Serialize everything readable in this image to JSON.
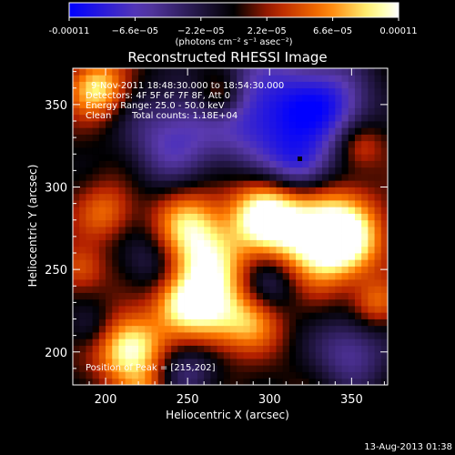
{
  "chart_data": {
    "type": "heatmap",
    "title": "Reconstructed RHESSI Image",
    "xlabel": "Heliocentric X (arcsec)",
    "ylabel": "Heliocentric Y (arcsec)",
    "xlim": [
      180,
      372
    ],
    "ylim": [
      180,
      372
    ],
    "x_ticks": [
      "200",
      "250",
      "300",
      "350"
    ],
    "y_ticks": [
      "200",
      "250",
      "300",
      "350"
    ],
    "grid": false,
    "colorbar": {
      "tick_labels": [
        "-0.00011",
        "−6.6e−05",
        "−2.2e−05",
        "2.2e−05",
        "6.6e−05",
        "0.00011"
      ],
      "units_label": "(photons cm⁻² s⁻¹ asec⁻²)",
      "range": [
        -0.00011,
        0.00011
      ],
      "colors": [
        "#0000ff",
        "#5a3ab0",
        "#000000",
        "#b01e00",
        "#ff7a00",
        "#ffff80",
        "#ffffff"
      ]
    },
    "annotations": [
      "9-Nov-2011 18:48:30.000 to 18:54:30.000",
      "Detectors: 4F 5F 6F 7F 8F, Att 0",
      "Energy Range: 25.0 - 50.0 keV",
      "Clean",
      "Total counts: 1.18E+04",
      "Position of Peak = [215,202]"
    ],
    "peak": {
      "x": 215,
      "y": 202
    },
    "min_marker": {
      "x": 321,
      "y": 312
    },
    "value_range": [
      -0.00011,
      0.00011
    ],
    "sources": [
      {
        "x": 320,
        "y": 275,
        "amp": 1.0,
        "r": 22
      },
      {
        "x": 345,
        "y": 268,
        "amp": 0.85,
        "r": 16
      },
      {
        "x": 295,
        "y": 285,
        "amp": 0.7,
        "r": 14
      },
      {
        "x": 260,
        "y": 255,
        "amp": 0.85,
        "r": 18
      },
      {
        "x": 250,
        "y": 280,
        "amp": 0.55,
        "r": 14
      },
      {
        "x": 215,
        "y": 202,
        "amp": 1.0,
        "r": 14
      },
      {
        "x": 265,
        "y": 222,
        "amp": 0.7,
        "r": 16
      },
      {
        "x": 245,
        "y": 230,
        "amp": 0.55,
        "r": 12
      },
      {
        "x": 195,
        "y": 360,
        "amp": 0.8,
        "r": 12
      },
      {
        "x": 270,
        "y": 355,
        "amp": 0.55,
        "r": 10
      },
      {
        "x": 200,
        "y": 285,
        "amp": 0.45,
        "r": 12
      },
      {
        "x": 355,
        "y": 325,
        "amp": 0.45,
        "r": 10
      },
      {
        "x": 365,
        "y": 230,
        "amp": 0.45,
        "r": 10
      },
      {
        "x": 185,
        "y": 250,
        "amp": 0.4,
        "r": 10
      },
      {
        "x": 290,
        "y": 218,
        "amp": 0.45,
        "r": 12
      },
      {
        "x": 225,
        "y": 175,
        "amp": 0.4,
        "r": 10
      },
      {
        "x": 300,
        "y": 345,
        "amp": -0.9,
        "r": 26
      },
      {
        "x": 240,
        "y": 330,
        "amp": -0.6,
        "r": 20
      },
      {
        "x": 340,
        "y": 350,
        "amp": -0.6,
        "r": 18
      },
      {
        "x": 320,
        "y": 310,
        "amp": -0.7,
        "r": 14
      },
      {
        "x": 350,
        "y": 200,
        "amp": -0.55,
        "r": 16
      },
      {
        "x": 230,
        "y": 255,
        "amp": -0.4,
        "r": 14
      },
      {
        "x": 300,
        "y": 245,
        "amp": -0.5,
        "r": 14
      },
      {
        "x": 250,
        "y": 190,
        "amp": -0.45,
        "r": 14
      },
      {
        "x": 190,
        "y": 215,
        "amp": -0.3,
        "r": 10
      }
    ]
  },
  "footer": {
    "date": "13-Aug-2013 01:38"
  }
}
